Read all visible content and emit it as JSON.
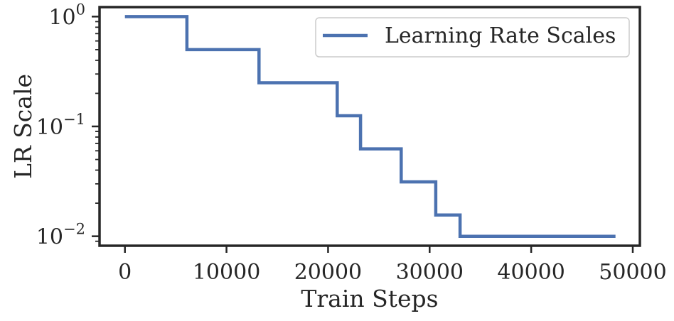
{
  "chart_data": {
    "type": "line",
    "xlabel": "Train Steps",
    "ylabel": "LR Scale",
    "x_ticks": [
      0,
      10000,
      20000,
      30000,
      40000,
      50000
    ],
    "xlim": [
      -2500,
      50700
    ],
    "y_scale": "log",
    "ylim": [
      0.0082,
      1.22
    ],
    "y_ticks": [
      {
        "value": 1,
        "base": "10",
        "exp": "0"
      },
      {
        "value": 0.1,
        "base": "10",
        "exp": "−1"
      },
      {
        "value": 0.01,
        "base": "10",
        "exp": "−2"
      }
    ],
    "legend_position": "top-right",
    "grid": false,
    "series": [
      {
        "name": "Learning Rate Scales",
        "color": "#4c72b0",
        "step": "post",
        "x": [
          0,
          6100,
          13200,
          20900,
          23200,
          27200,
          30600,
          33000,
          48300
        ],
        "y": [
          1.0,
          0.5,
          0.25,
          0.125,
          0.0625,
          0.03125,
          0.015625,
          0.01,
          0.01
        ]
      }
    ]
  }
}
